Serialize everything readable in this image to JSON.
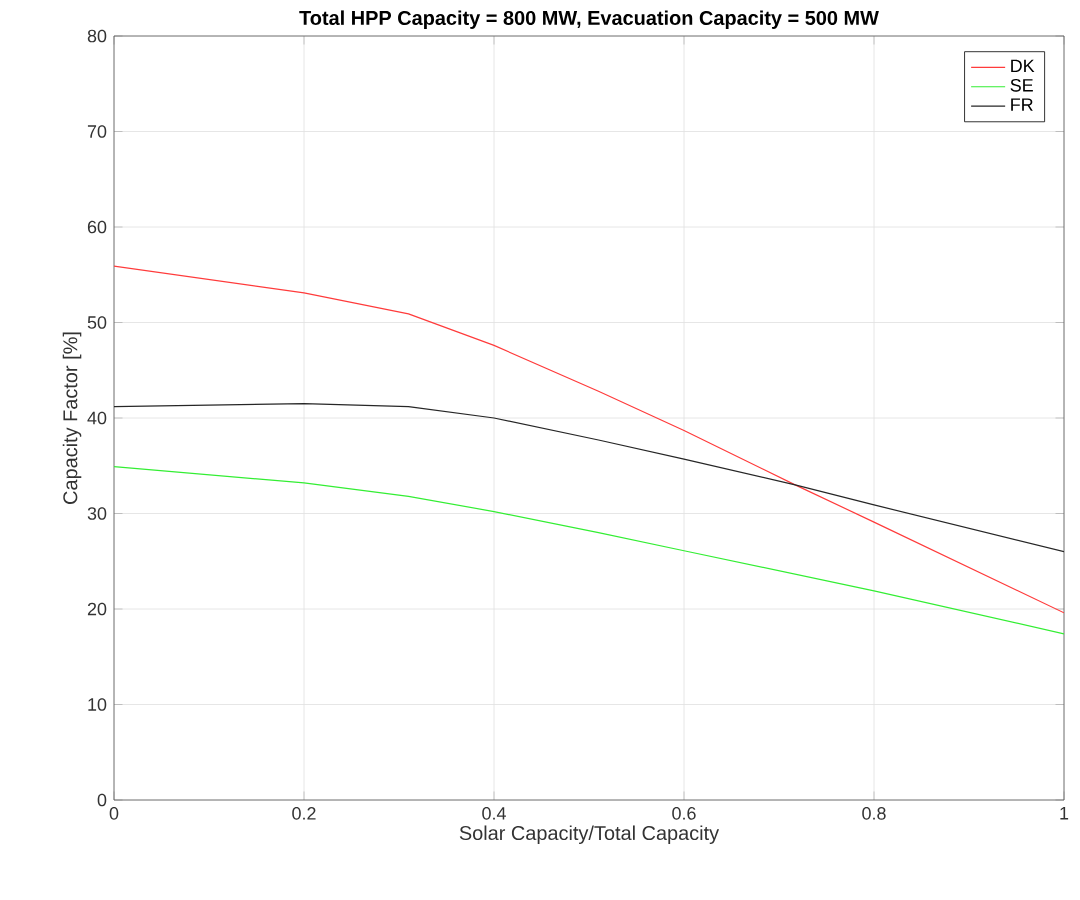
{
  "chart_data": {
    "type": "line",
    "title": "Total HPP Capacity = 800 MW, Evacuation Capacity = 500 MW",
    "xlabel": "Solar Capacity/Total Capacity",
    "ylabel": "Capacity Factor [%]",
    "xlim": [
      0,
      1
    ],
    "ylim": [
      0,
      80
    ],
    "xticks": [
      0,
      0.2,
      0.4,
      0.6,
      0.8,
      1
    ],
    "yticks": [
      0,
      10,
      20,
      30,
      40,
      50,
      60,
      70,
      80
    ],
    "grid": true,
    "legend": "top right",
    "marker": "none",
    "line_style": "solid",
    "series": [
      {
        "name": "DK",
        "color": "#ff3b3b",
        "x": [
          0,
          0.2,
          0.31,
          0.4,
          0.51,
          0.6,
          0.717,
          0.8,
          1
        ],
        "values": [
          55.9,
          53.1,
          50.9,
          47.6,
          42.8,
          38.7,
          33,
          29.1,
          19.6
        ]
      },
      {
        "name": "SE",
        "color": "#33ee33",
        "x": [
          0,
          0.2,
          0.31,
          0.4,
          0.51,
          0.6,
          0.8,
          1
        ],
        "values": [
          34.9,
          33.2,
          31.8,
          30.2,
          28.0,
          26.1,
          21.9,
          17.4
        ]
      },
      {
        "name": "FR",
        "color": "#262626",
        "x": [
          0,
          0.2,
          0.31,
          0.4,
          0.51,
          0.6,
          0.717,
          0.8,
          1
        ],
        "values": [
          41.2,
          41.5,
          41.2,
          40.0,
          37.7,
          35.7,
          33,
          30.9,
          26.0
        ]
      }
    ]
  }
}
